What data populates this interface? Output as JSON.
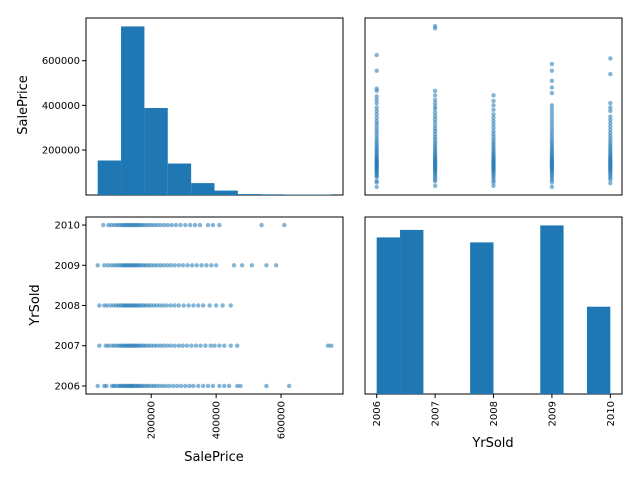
{
  "chart_data": {
    "type": "scatter_matrix",
    "variables": [
      "SalePrice",
      "YrSold"
    ],
    "labels": {
      "left_row1": "SalePrice",
      "left_row2": "YrSold",
      "bottom_col1": "SalePrice",
      "bottom_col2": "YrSold"
    },
    "color": "#1f77b4",
    "saleprice_hist": {
      "bins": [
        34900,
        106910,
        178920,
        250930,
        322940,
        394950,
        466960,
        538970,
        610980,
        682990,
        755000
      ],
      "counts": [
        148,
        723,
        373,
        135,
        51,
        19,
        4,
        3,
        2,
        2
      ]
    },
    "saleprice_hist_ticks": [
      "200000",
      "400000",
      "600000"
    ],
    "yrsold_hist": {
      "bins": [
        2006,
        2006.4,
        2006.8,
        2007.2,
        2007.6,
        2008,
        2008.4,
        2008.8,
        2009.2,
        2009.6,
        2010
      ],
      "counts": [
        314,
        329,
        0,
        0,
        304,
        0,
        0,
        338,
        0,
        175
      ]
    },
    "years": [
      "2006",
      "2007",
      "2008",
      "2009",
      "2010"
    ],
    "saleprice_ticks": [
      "200000",
      "400000",
      "600000"
    ],
    "scatter_points": {
      "2006": [
        35000,
        55000,
        62000,
        79000,
        85000,
        91000,
        99000,
        104000,
        109000,
        114000,
        119000,
        124000,
        128000,
        133000,
        137000,
        141000,
        145000,
        150000,
        155000,
        160000,
        165000,
        171000,
        178000,
        185000,
        192000,
        200000,
        208000,
        216000,
        225000,
        235000,
        245000,
        256000,
        268000,
        280000,
        292000,
        305000,
        318000,
        330000,
        345000,
        360000,
        375000,
        390000,
        410000,
        425000,
        440000,
        465000,
        475000,
        555000,
        625000
      ],
      "2007": [
        40000,
        60000,
        68000,
        78000,
        86000,
        94000,
        101000,
        107000,
        113000,
        118000,
        123000,
        128000,
        133000,
        138000,
        143000,
        148000,
        153000,
        158000,
        164000,
        170000,
        177000,
        184000,
        192000,
        200000,
        209000,
        218000,
        228000,
        238000,
        249000,
        260000,
        272000,
        285000,
        297000,
        310000,
        324000,
        338000,
        352000,
        367000,
        383000,
        395000,
        410000,
        425000,
        445000,
        465000,
        745000,
        755000
      ],
      "2008": [
        40000,
        55000,
        64000,
        75000,
        84000,
        92000,
        99000,
        106000,
        112000,
        117000,
        122000,
        127000,
        132000,
        137000,
        142000,
        147000,
        152000,
        157000,
        163000,
        169000,
        176000,
        183000,
        191000,
        199000,
        208000,
        217000,
        227000,
        237000,
        248000,
        260000,
        272000,
        285000,
        300000,
        315000,
        330000,
        345000,
        360000,
        380000,
        400000,
        420000,
        445000
      ],
      "2009": [
        35000,
        55000,
        66000,
        76000,
        85000,
        93000,
        100000,
        107000,
        113000,
        118000,
        123000,
        128000,
        133000,
        138000,
        143000,
        148000,
        153000,
        158000,
        164000,
        170000,
        177000,
        184000,
        192000,
        200000,
        209000,
        218000,
        228000,
        238000,
        249000,
        260000,
        272000,
        285000,
        298000,
        312000,
        326000,
        340000,
        355000,
        370000,
        385000,
        400000,
        455000,
        480000,
        510000,
        555000,
        585000
      ],
      "2010": [
        52000,
        68000,
        77000,
        86000,
        94000,
        101000,
        108000,
        114000,
        119000,
        124000,
        129000,
        134000,
        139000,
        144000,
        149000,
        154000,
        159000,
        165000,
        171000,
        178000,
        185000,
        193000,
        201000,
        210000,
        219000,
        229000,
        240000,
        251000,
        263000,
        276000,
        290000,
        305000,
        320000,
        335000,
        350000,
        375000,
        390000,
        410000,
        540000,
        610000
      ]
    }
  }
}
